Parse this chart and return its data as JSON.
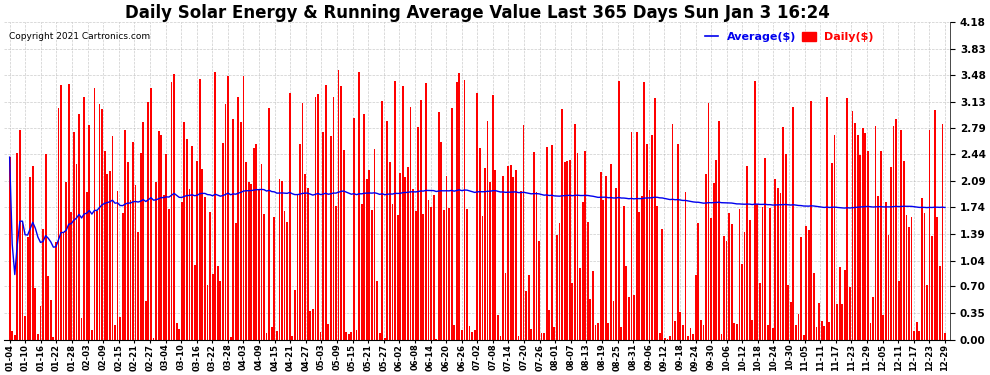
{
  "title": "Daily Solar Energy & Running Average Value Last 365 Days Sun Jan 3 16:24",
  "copyright": "Copyright 2021 Cartronics.com",
  "legend_avg": "Average($)",
  "legend_daily": "Daily($)",
  "bar_color": "#ff0000",
  "avg_line_color": "#0000ee",
  "legend_avg_color": "#0000ee",
  "legend_daily_color": "#ff0000",
  "ylim": [
    0.0,
    4.18
  ],
  "yticks": [
    0.0,
    0.35,
    0.7,
    1.04,
    1.39,
    1.74,
    2.09,
    2.44,
    2.79,
    3.13,
    3.48,
    3.83,
    4.18
  ],
  "background_color": "#ffffff",
  "grid_color": "#aaaaaa",
  "title_fontsize": 12,
  "num_days": 365,
  "tick_labels": [
    "01-04",
    "01-10",
    "01-16",
    "01-22",
    "01-28",
    "02-03",
    "02-09",
    "02-15",
    "02-21",
    "02-27",
    "03-04",
    "03-10",
    "03-16",
    "03-22",
    "03-28",
    "04-03",
    "04-09",
    "04-15",
    "04-21",
    "04-27",
    "05-03",
    "05-09",
    "05-15",
    "05-21",
    "05-27",
    "06-02",
    "06-08",
    "06-14",
    "06-20",
    "06-26",
    "07-02",
    "07-08",
    "07-14",
    "07-20",
    "07-26",
    "08-01",
    "08-07",
    "08-13",
    "08-19",
    "08-25",
    "08-31",
    "09-06",
    "09-12",
    "09-18",
    "09-24",
    "09-30",
    "10-06",
    "10-12",
    "10-18",
    "10-24",
    "10-30",
    "11-05",
    "11-11",
    "11-17",
    "11-23",
    "11-29",
    "12-05",
    "12-11",
    "12-17",
    "12-23",
    "12-29"
  ]
}
